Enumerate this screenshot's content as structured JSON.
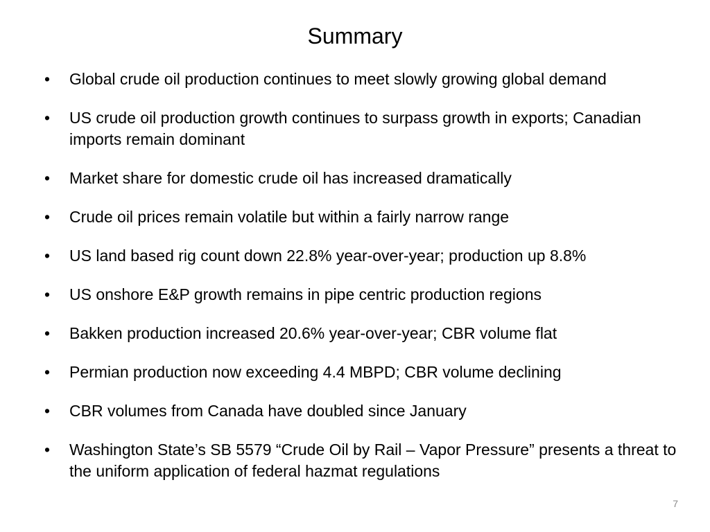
{
  "slide": {
    "title": "Summary",
    "bullets": [
      "Global crude oil production continues to meet slowly growing global demand",
      "US crude oil production growth continues to surpass growth in exports; Canadian imports remain dominant",
      "Market share for domestic crude oil has increased dramatically",
      "Crude oil prices remain volatile but within a fairly narrow range",
      "US land based rig count down 22.8% year-over-year; production up 8.8%",
      "US onshore E&P growth remains in pipe centric production regions",
      "Bakken production increased 20.6% year-over-year; CBR volume flat",
      "Permian production now exceeding 4.4 MBPD; CBR volume declining",
      "CBR volumes from Canada have doubled since January",
      "Washington State’s SB 5579 “Crude Oil by Rail – Vapor Pressure” presents a threat to the uniform application of federal hazmat regulations"
    ],
    "bullet_symbol": "•",
    "page_number": "7"
  }
}
